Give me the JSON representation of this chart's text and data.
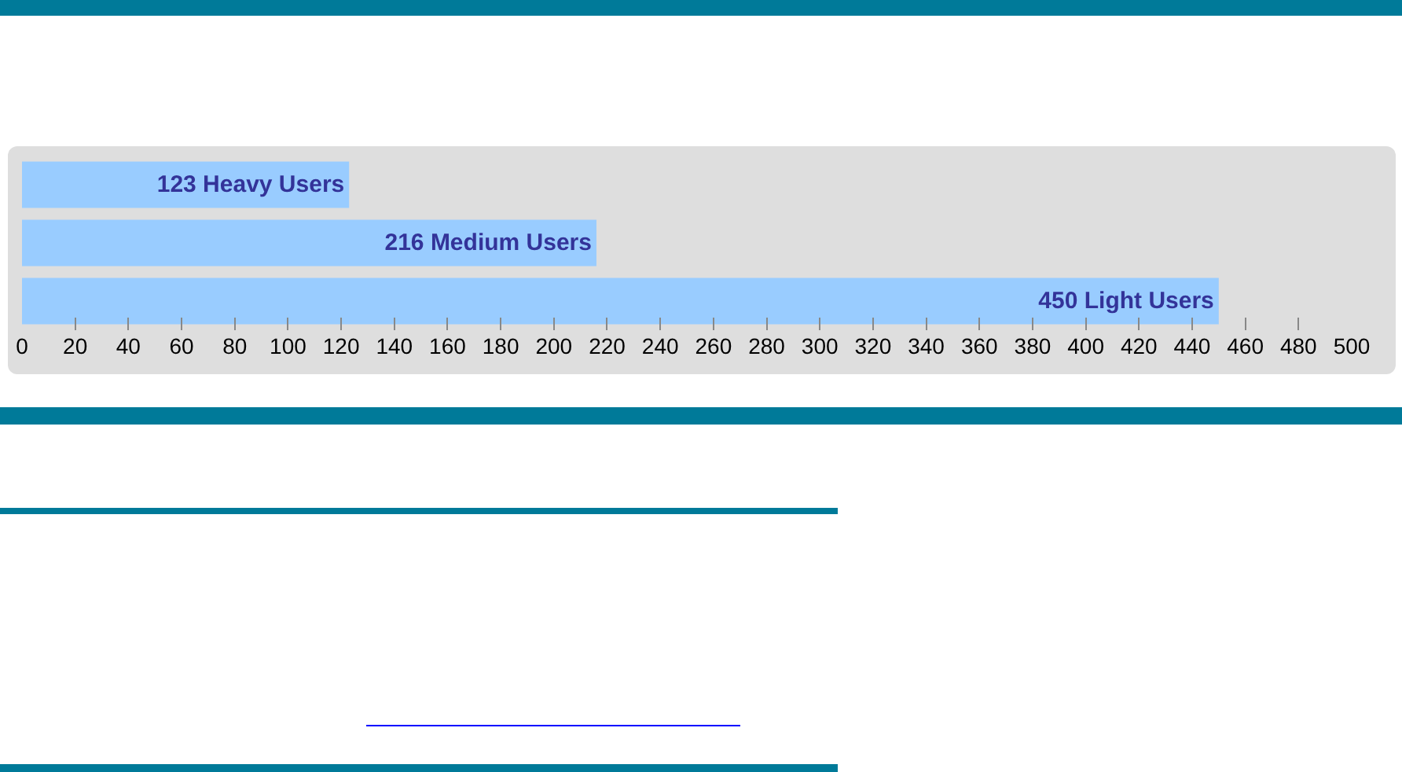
{
  "chart_data": {
    "type": "bar",
    "orientation": "horizontal",
    "categories": [
      null,
      null,
      null
    ],
    "values": [
      123,
      216,
      450
    ],
    "value_labels": [
      "123 Heavy Users",
      "216 Medium Users",
      "450 Light Users"
    ],
    "color": "#99ccff",
    "xlim": [
      0,
      500
    ],
    "xticks": [
      0,
      20,
      40,
      60,
      80,
      100,
      120,
      140,
      160,
      180,
      200,
      220,
      240,
      260,
      280,
      300,
      320,
      340,
      360,
      380,
      400,
      420,
      440,
      460,
      480,
      500
    ],
    "tick_labels": "x",
    "grid": false,
    "legend": false
  }
}
